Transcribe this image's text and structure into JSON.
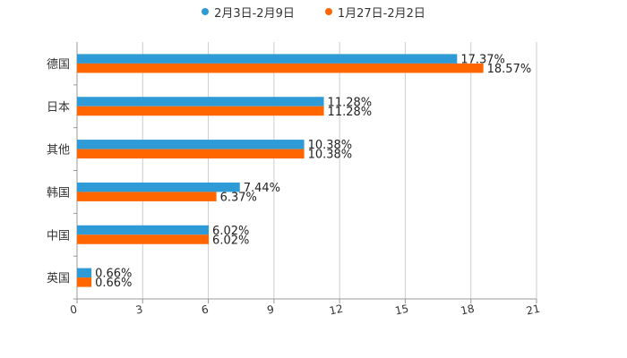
{
  "colors": {
    "series1": "#2e9bd6",
    "series2": "#ff6600",
    "grid": "#cccccc",
    "axis": "#999999"
  },
  "chart_data": {
    "type": "bar",
    "orientation": "horizontal",
    "title": "",
    "xlabel": "",
    "ylabel": "",
    "categories": [
      "德国",
      "日本",
      "其他",
      "韩国",
      "中国",
      "英国"
    ],
    "series": [
      {
        "name": "2月3日-2月9日",
        "values": [
          17.37,
          11.28,
          10.38,
          7.44,
          6.02,
          0.66
        ],
        "labels": [
          "17.37%",
          "11.28%",
          "10.38%",
          "7.44%",
          "6.02%",
          "0.66%"
        ]
      },
      {
        "name": "1月27日-2月2日",
        "values": [
          18.57,
          11.28,
          10.38,
          6.37,
          6.02,
          0.66
        ],
        "labels": [
          "18.57%",
          "11.28%",
          "10.38%",
          "6.37%",
          "6.02%",
          "0.66%"
        ]
      }
    ],
    "xlim": [
      0,
      21
    ],
    "xticks": [
      "0",
      "3",
      "6",
      "9",
      "12",
      "15",
      "18",
      "21"
    ],
    "legend_position": "top-center",
    "grid": true
  }
}
